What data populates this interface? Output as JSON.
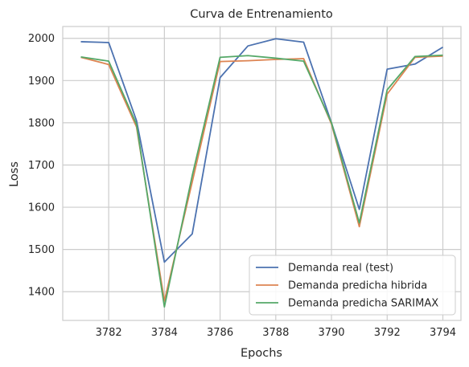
{
  "chart_data": {
    "type": "line",
    "title": "Curva de Entrenamiento",
    "xlabel": "Epochs",
    "ylabel": "Loss",
    "xlim": [
      3780.35,
      3794.65
    ],
    "ylim": [
      1332,
      2028
    ],
    "xticks": [
      3782,
      3784,
      3786,
      3788,
      3790,
      3792,
      3794
    ],
    "yticks": [
      1400,
      1500,
      1600,
      1700,
      1800,
      1900,
      2000
    ],
    "grid": true,
    "legend_position": "lower right",
    "x": [
      3781,
      3782,
      3783,
      3784,
      3785,
      3786,
      3787,
      3788,
      3789,
      3790,
      3791,
      3792,
      3793,
      3794
    ],
    "series": [
      {
        "name": "Demanda real (test)",
        "color": "#4c72b0",
        "values": [
          1992,
          1990,
          1805,
          1470,
          1537,
          1907,
          1982,
          1999,
          1991,
          1800,
          1595,
          1927,
          1939,
          1979
        ]
      },
      {
        "name": "Demanda predicha hibrida",
        "color": "#dd8452",
        "values": [
          1955,
          1938,
          1790,
          1378,
          1660,
          1945,
          1947,
          1950,
          1952,
          1797,
          1554,
          1868,
          1955,
          1958
        ]
      },
      {
        "name": "Demanda predicha SARIMAX",
        "color": "#55a868",
        "values": [
          1956,
          1946,
          1796,
          1364,
          1675,
          1955,
          1959,
          1953,
          1946,
          1800,
          1563,
          1878,
          1957,
          1960
        ]
      }
    ]
  }
}
